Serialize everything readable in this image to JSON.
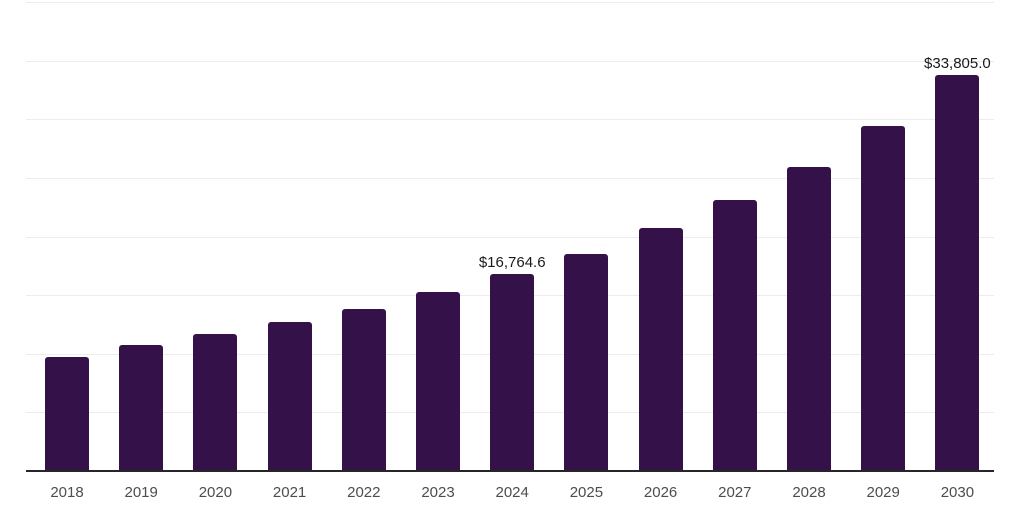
{
  "chart_data": {
    "type": "bar",
    "title": "",
    "xlabel": "",
    "ylabel": "",
    "categories": [
      "2018",
      "2019",
      "2020",
      "2021",
      "2022",
      "2023",
      "2024",
      "2025",
      "2026",
      "2027",
      "2028",
      "2029",
      "2030"
    ],
    "values": [
      9700,
      10750,
      11700,
      12700,
      13830,
      15240,
      16764.6,
      18550,
      20700,
      23100,
      25960,
      29460,
      33805
    ],
    "data_labels": [
      {
        "category": "2024",
        "text": "$16,764.6"
      },
      {
        "category": "2030",
        "text": "$33,805.0"
      }
    ],
    "ylim": [
      0,
      40000
    ],
    "gridline_step": 5000,
    "grid": true,
    "legend": false,
    "y_axis_tick_labels": false,
    "colors": {
      "bar": "#341149",
      "gridline": "#ececec",
      "axis": "#262626",
      "tick_label": "#4d4d4d",
      "data_label": "#1a1a1a",
      "background": "#ffffff"
    }
  }
}
